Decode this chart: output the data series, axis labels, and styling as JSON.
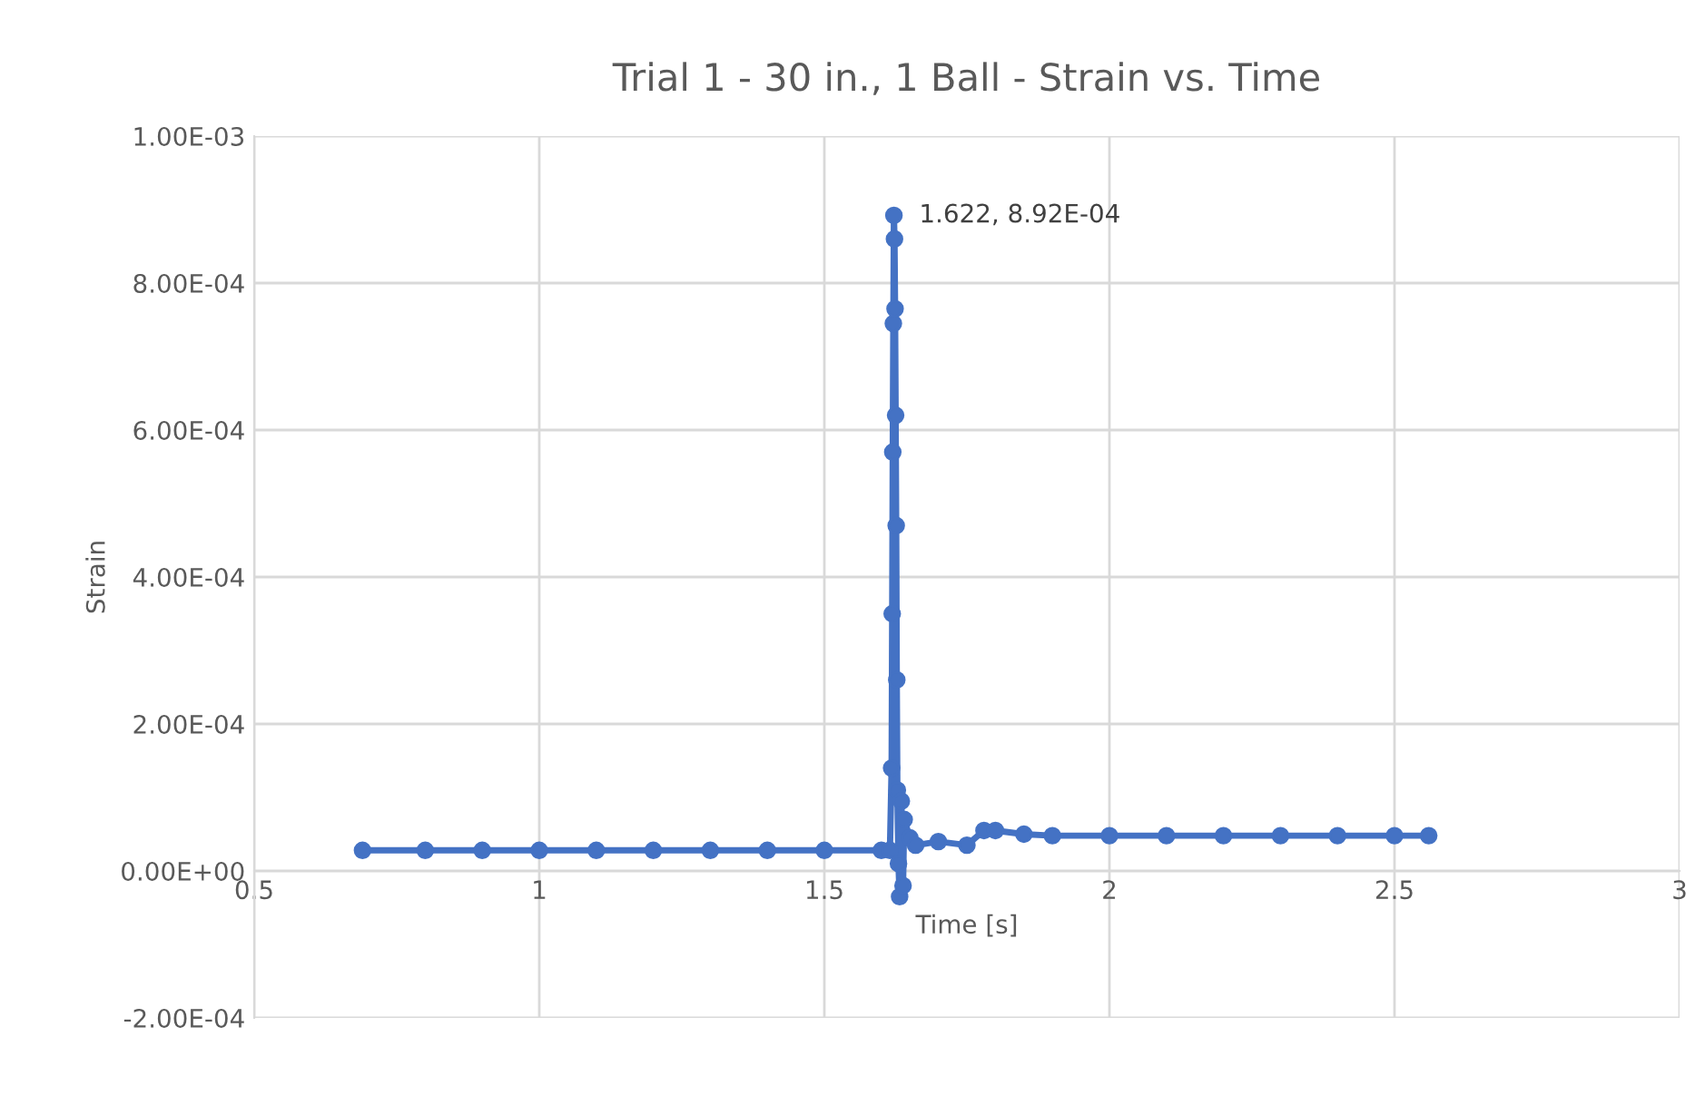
{
  "chart_data": {
    "type": "line",
    "title": "Trial 1 - 30 in., 1 Ball - Strain vs. Time",
    "xlabel": "Time [s]",
    "ylabel": "Strain",
    "series": [
      {
        "color": "#4472c4",
        "x": [
          0.69,
          0.8,
          0.9,
          1.0,
          1.1,
          1.2,
          1.3,
          1.4,
          1.5,
          1.6,
          1.615,
          1.618,
          1.619,
          1.62,
          1.621,
          1.622,
          1.623,
          1.624,
          1.625,
          1.626,
          1.627,
          1.628,
          1.63,
          1.632,
          1.635,
          1.638,
          1.64,
          1.65,
          1.66,
          1.7,
          1.75,
          1.78,
          1.8,
          1.85,
          1.9,
          2.0,
          2.1,
          2.2,
          2.3,
          2.4,
          2.5,
          2.56
        ],
        "values": [
          2.8e-05,
          2.8e-05,
          2.8e-05,
          2.8e-05,
          2.8e-05,
          2.8e-05,
          2.8e-05,
          2.8e-05,
          2.8e-05,
          2.8e-05,
          2.8e-05,
          0.00014,
          0.00035,
          0.00057,
          0.000745,
          0.000892,
          0.00086,
          0.000765,
          0.00062,
          0.00047,
          0.00026,
          0.00011,
          1e-05,
          -3.5e-05,
          9.5e-05,
          -2e-05,
          7e-05,
          4.5e-05,
          3.5e-05,
          4e-05,
          3.5e-05,
          5.5e-05,
          5.5e-05,
          5e-05,
          4.8e-05,
          4.8e-05,
          4.8e-05,
          4.8e-05,
          4.8e-05,
          4.8e-05,
          4.8e-05,
          4.8e-05
        ]
      }
    ],
    "annotations": [
      {
        "text": "1.622, 8.92E-04",
        "x": 1.622,
        "y": 0.000892
      }
    ],
    "xlim": [
      0.5,
      3
    ],
    "xticks": [
      0.5,
      1,
      1.5,
      2,
      2.5,
      3
    ],
    "ylim": [
      -0.0002,
      0.001
    ],
    "yticks": [
      {
        "value": -0.0002,
        "label": "-2.00E-04"
      },
      {
        "value": 0,
        "label": "0.00E+00"
      },
      {
        "value": 0.0002,
        "label": "2.00E-04"
      },
      {
        "value": 0.0004,
        "label": "4.00E-04"
      },
      {
        "value": 0.0006,
        "label": "6.00E-04"
      },
      {
        "value": 0.0008,
        "label": "8.00E-04"
      },
      {
        "value": 0.001,
        "label": "1.00E-03"
      }
    ],
    "grid": true,
    "marker": "circle",
    "line_style": "solid",
    "legend": false
  }
}
